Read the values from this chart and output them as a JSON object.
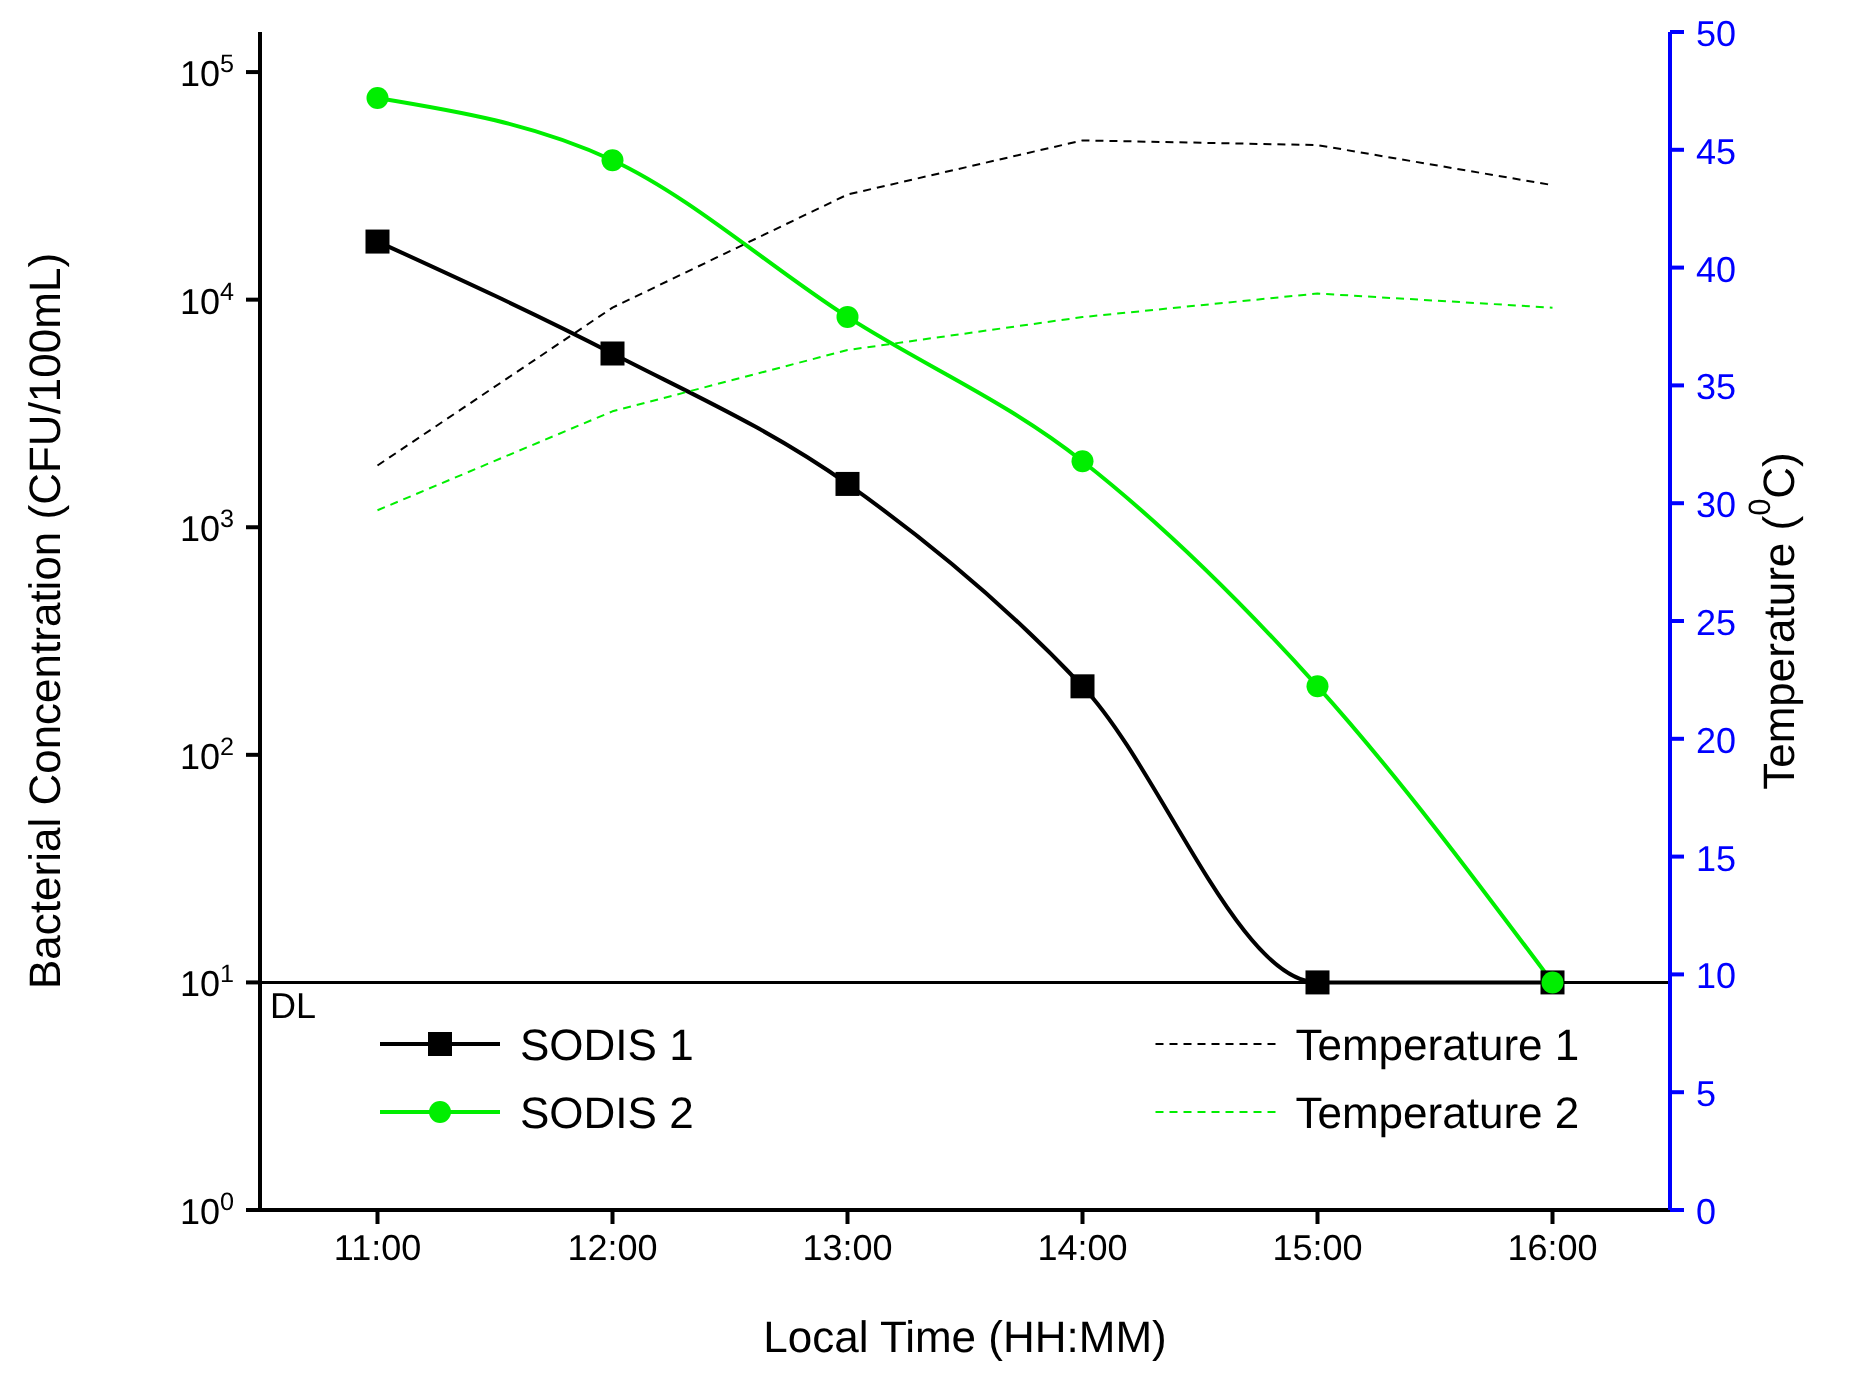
{
  "chart_data": {
    "type": "line",
    "xlabel": "Local Time (HH:MM)",
    "ylabel": "Bacterial Concentration (CFU/100mL)",
    "y2label": "Temperature ($^{0}$C)",
    "x": [
      11,
      12,
      13,
      14,
      15,
      16
    ],
    "xlim": [
      10.5,
      16.5
    ],
    "xticks": [
      {
        "value": 11,
        "label": "11:00"
      },
      {
        "value": 12,
        "label": "12:00"
      },
      {
        "value": 13,
        "label": "13:00"
      },
      {
        "value": 14,
        "label": "14:00"
      },
      {
        "value": 15,
        "label": "15:00"
      },
      {
        "value": 16,
        "label": "16:00"
      }
    ],
    "log": "y",
    "ylim": [
      1,
      150000
    ],
    "yticks": [
      {
        "value": 1,
        "label": "10$^{0}$"
      },
      {
        "value": 10,
        "label": "10$^{1}$"
      },
      {
        "value": 100,
        "label": "10$^{2}$"
      },
      {
        "value": 1000,
        "label": "10$^{3}$"
      },
      {
        "value": 10000,
        "label": "10$^{4}$"
      },
      {
        "value": 100000,
        "label": "10$^{5}$"
      }
    ],
    "y2lim": [
      0,
      50
    ],
    "y2ticks": [
      0,
      5,
      10,
      15,
      20,
      25,
      30,
      35,
      40,
      45,
      50
    ],
    "series": [
      {
        "name": "SODIS 1",
        "color": "#000000",
        "marker": "square",
        "line_style": "solid",
        "values": [
          18000,
          5800,
          1550,
          200,
          10,
          10
        ]
      },
      {
        "name": "SODIS 2",
        "color": "#00ee00",
        "marker": "circle",
        "line_style": "solid",
        "values": [
          77000,
          41000,
          8400,
          1950,
          200,
          10
        ]
      },
      {
        "name": "Temperature 1",
        "color": "#000000",
        "marker": "none",
        "line_style": "dashed",
        "axis": "y2",
        "values": [
          31.6,
          38.3,
          43.1,
          45.4,
          45.2,
          43.5
        ]
      },
      {
        "name": "Temperature 2",
        "color": "#00ee00",
        "marker": "none",
        "line_style": "dashed",
        "axis": "y2",
        "values": [
          29.7,
          33.9,
          36.5,
          37.9,
          38.9,
          38.3
        ]
      }
    ],
    "ref_lines": [
      {
        "axis": "y",
        "value": 10,
        "label": "DL",
        "color": "#000000"
      }
    ],
    "grid": false,
    "legend": "bottom"
  }
}
